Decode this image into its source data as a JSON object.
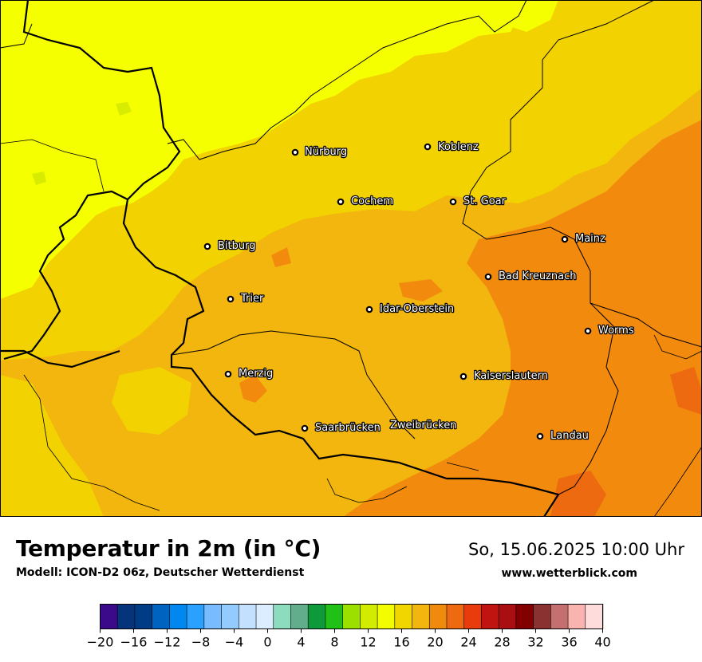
{
  "map": {
    "title": "Temperatur in 2m (in °C)",
    "model": "Modell: ICON-D2 06z, Deutscher Wetterdienst",
    "datetime": "So, 15.06.2025 10:00 Uhr",
    "website": "www.wetterblick.com",
    "cities": [
      {
        "name": "Nürburg"
      },
      {
        "name": "Koblenz"
      },
      {
        "name": "Cochem"
      },
      {
        "name": "St. Goar"
      },
      {
        "name": "Bitburg"
      },
      {
        "name": "Mainz"
      },
      {
        "name": "Bad Kreuznach"
      },
      {
        "name": "Trier"
      },
      {
        "name": "Idar-Oberstein"
      },
      {
        "name": "Worms"
      },
      {
        "name": "Merzig"
      },
      {
        "name": "Kaiserslautern"
      },
      {
        "name": "Saarbrücken"
      },
      {
        "name": "Zweibrücken"
      },
      {
        "name": "Landau"
      }
    ],
    "colors": {
      "t14_16": "#e8f200",
      "t16_18": "#f5ff00",
      "t18_20": "#f2d200",
      "t20_22": "#f2b60e",
      "t22_24": "#f28a0e",
      "t24_26": "#ee6a10",
      "border": "#000000"
    }
  },
  "legend": {
    "ticks": [
      "−20",
      "−16",
      "−12",
      "−8",
      "−4",
      "0",
      "4",
      "8",
      "12",
      "16",
      "20",
      "24",
      "28",
      "32",
      "36",
      "40"
    ],
    "colors": [
      "#3a0a8a",
      "#06347a",
      "#003c86",
      "#0063c0",
      "#0088f0",
      "#2aa0ff",
      "#78bcff",
      "#94cbff",
      "#c4e0ff",
      "#dcedff",
      "#8cdcc0",
      "#62ae8c",
      "#0e9a3a",
      "#20c016",
      "#9ce000",
      "#d2ec00",
      "#f4fc00",
      "#f2d600",
      "#f2b60e",
      "#f08a0c",
      "#ee6a10",
      "#e83c0c",
      "#c01410",
      "#a80e12",
      "#820000",
      "#8a3232",
      "#c47070",
      "#fab4b0",
      "#ffdcdc"
    ]
  }
}
